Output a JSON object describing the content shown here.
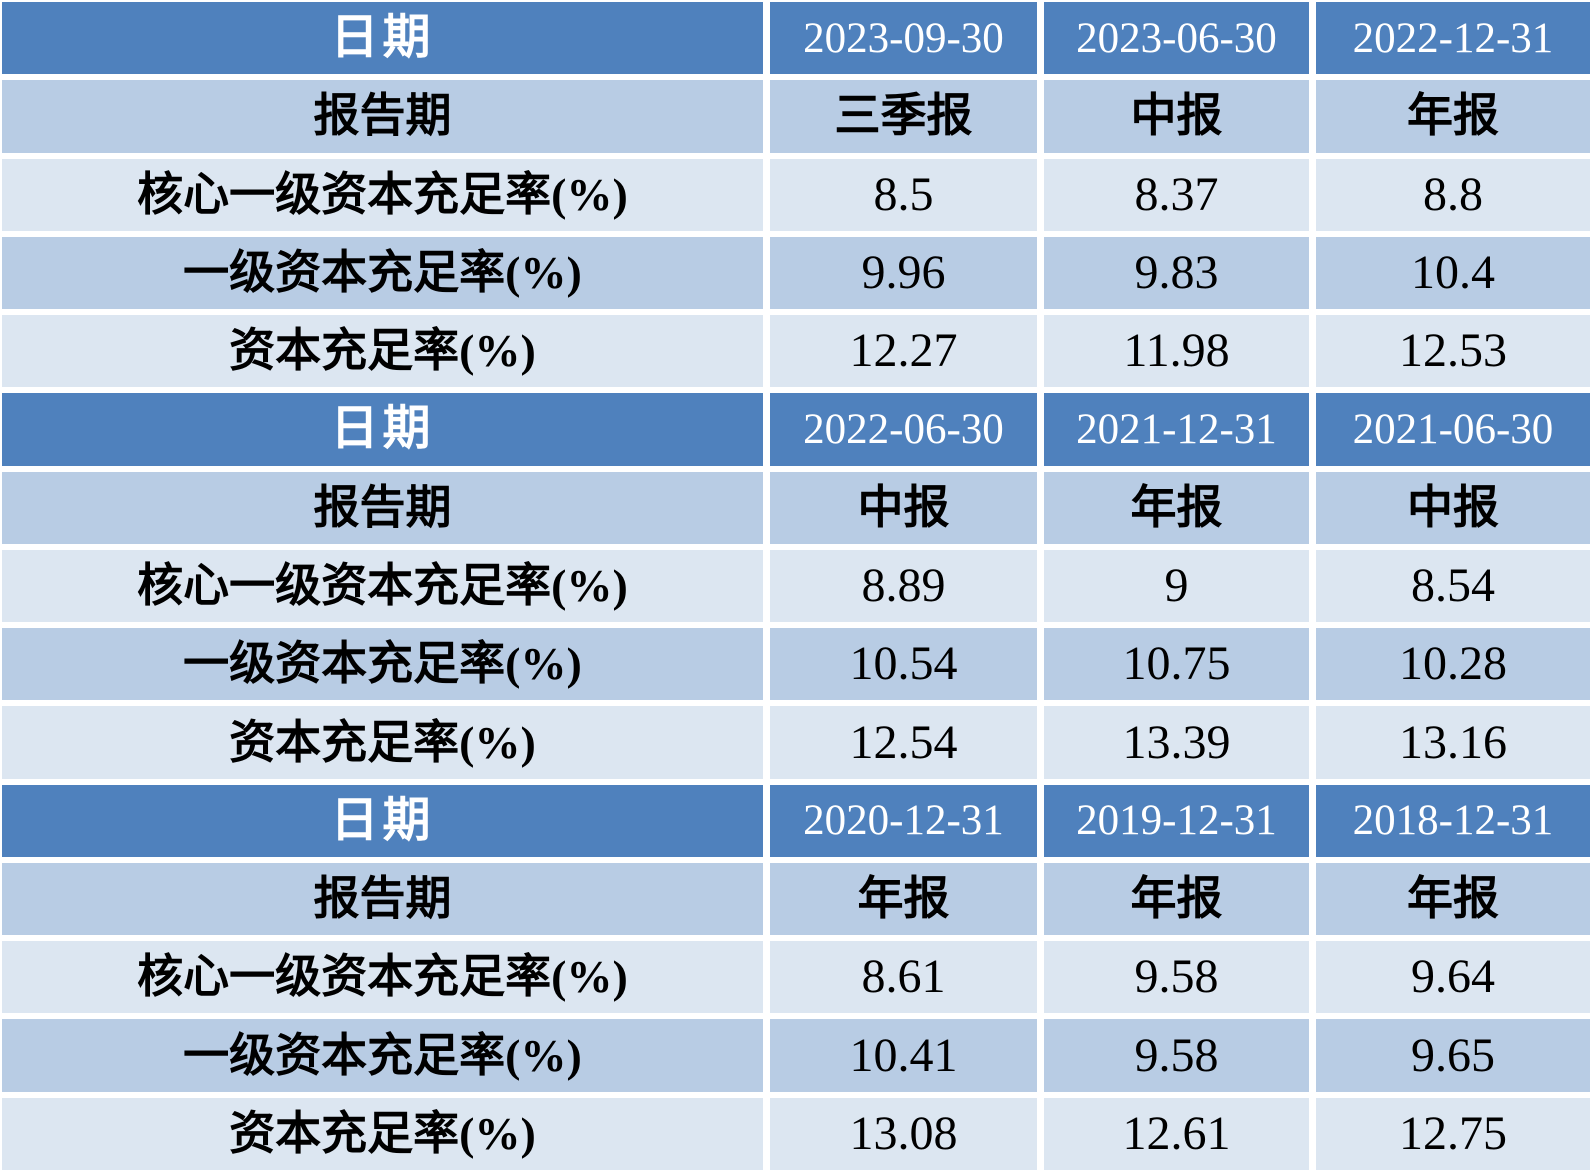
{
  "chart_data": {
    "type": "table",
    "title": "",
    "labels": {
      "date": "日期",
      "report_period": "报告期",
      "core_tier1_ratio": "核心一级资本充足率(%)",
      "tier1_ratio": "一级资本充足率(%)",
      "capital_adequacy_ratio": "资本充足率(%)"
    },
    "sections": [
      {
        "dates": [
          "2023-09-30",
          "2023-06-30",
          "2022-12-31"
        ],
        "report_periods": [
          "三季报",
          "中报",
          "年报"
        ],
        "core_tier1_ratio": [
          "8.5",
          "8.37",
          "8.8"
        ],
        "tier1_ratio": [
          "9.96",
          "9.83",
          "10.4"
        ],
        "capital_adequacy_ratio": [
          "12.27",
          "11.98",
          "12.53"
        ]
      },
      {
        "dates": [
          "2022-06-30",
          "2021-12-31",
          "2021-06-30"
        ],
        "report_periods": [
          "中报",
          "年报",
          "中报"
        ],
        "core_tier1_ratio": [
          "8.89",
          "9",
          "8.54"
        ],
        "tier1_ratio": [
          "10.54",
          "10.75",
          "10.28"
        ],
        "capital_adequacy_ratio": [
          "12.54",
          "13.39",
          "13.16"
        ]
      },
      {
        "dates": [
          "2020-12-31",
          "2019-12-31",
          "2018-12-31"
        ],
        "report_periods": [
          "年报",
          "年报",
          "年报"
        ],
        "core_tier1_ratio": [
          "8.61",
          "9.58",
          "9.64"
        ],
        "tier1_ratio": [
          "10.41",
          "9.58",
          "9.65"
        ],
        "capital_adequacy_ratio": [
          "13.08",
          "12.61",
          "12.75"
        ]
      }
    ],
    "layout": {
      "sections_count": 3,
      "columns_per_section": 3,
      "grid": "on",
      "banding": [
        "header",
        "medium",
        "light",
        "medium",
        "light"
      ]
    },
    "colors": {
      "header_bg": "#4F81BD",
      "band_medium": "#B8CCE4",
      "band_light": "#DCE6F1",
      "header_text": "#FFFFFF",
      "body_text": "#000000",
      "grid": "#FFFFFF"
    }
  }
}
